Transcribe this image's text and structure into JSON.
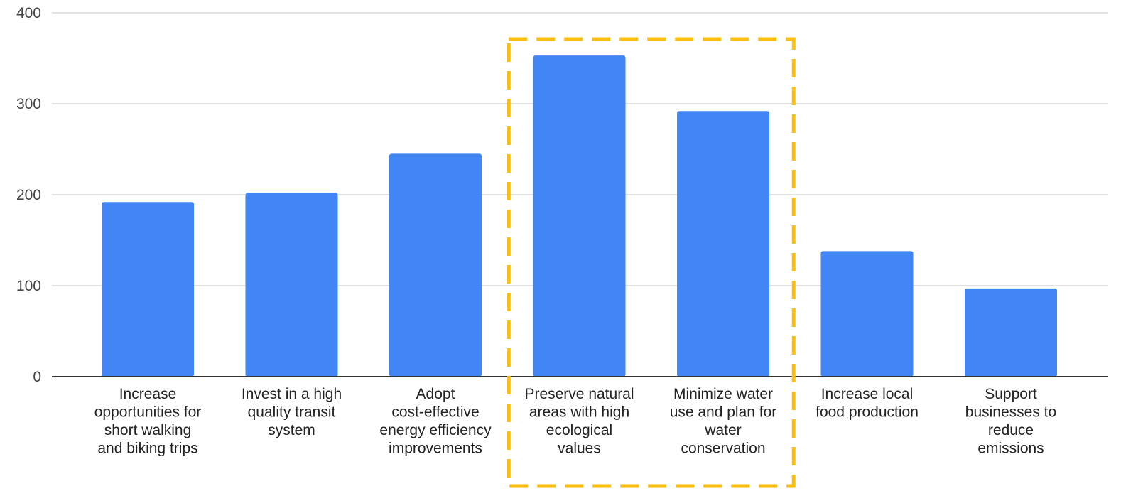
{
  "chart_data": {
    "type": "bar",
    "title": "",
    "xlabel": "",
    "ylabel": "",
    "ylim": [
      0,
      400
    ],
    "yticks": [
      0,
      100,
      200,
      300,
      400
    ],
    "grid": true,
    "categories": [
      [
        "Increase",
        "opportunities for",
        "short walking",
        "and biking trips"
      ],
      [
        "Invest in a high",
        "quality transit",
        "system"
      ],
      [
        "Adopt",
        "cost-effective",
        "energy efficiency",
        "improvements"
      ],
      [
        "Preserve natural",
        "areas with high",
        "ecological",
        "values"
      ],
      [
        "Minimize water",
        "use and plan for",
        "water",
        "conservation"
      ],
      [
        "Increase local",
        "food production"
      ],
      [
        "Support",
        "businesses to",
        "reduce",
        "emissions"
      ]
    ],
    "values": [
      192,
      202,
      245,
      353,
      292,
      138,
      97
    ],
    "highlight": {
      "style": "dashed-box",
      "categories_index": [
        3,
        4
      ],
      "color": "#F9BE12"
    },
    "colors": {
      "bar": "#4285F4",
      "grid": "#D9D9D9",
      "axis": "#333333"
    }
  }
}
